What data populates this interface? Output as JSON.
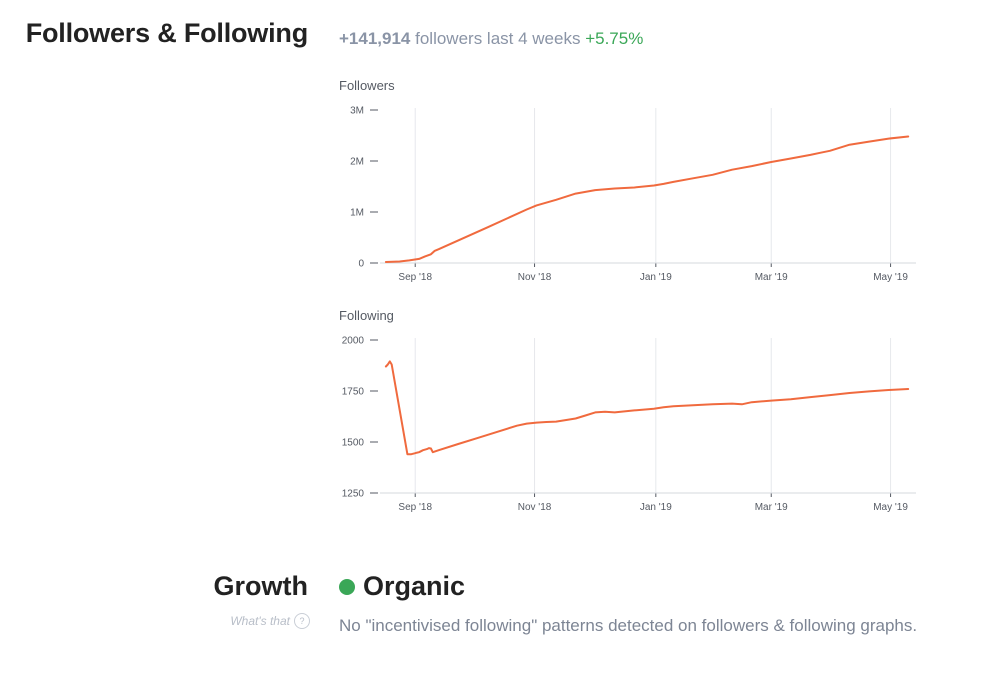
{
  "section": {
    "title": "Followers & Following",
    "summary_delta": "+141,914",
    "summary_text": " followers last 4 weeks ",
    "summary_pct": "+5.75%"
  },
  "colors": {
    "line": "#f06a3e",
    "positive": "#3aa757",
    "grid": "#e6e8ec",
    "axis": "#555a63"
  },
  "chart_data": [
    {
      "type": "line",
      "title": "Followers",
      "xlabel": "",
      "ylabel": "",
      "x_ticks": [
        "Sep '18",
        "Nov '18",
        "Jan '19",
        "Mar '19",
        "May '19"
      ],
      "x_tick_days": [
        18,
        79,
        141,
        200,
        261
      ],
      "y_ticks": [
        "0",
        "1M",
        "2M",
        "3M"
      ],
      "y_tick_values": [
        0,
        1000000,
        2000000,
        3000000
      ],
      "ylim": [
        0,
        3000000
      ],
      "xlim": [
        0,
        274
      ],
      "grid": "vertical",
      "series": [
        {
          "name": "Followers",
          "x": [
            3,
            10,
            15,
            20,
            23,
            26,
            28,
            30,
            55,
            75,
            80,
            90,
            100,
            110,
            120,
            130,
            140,
            145,
            150,
            160,
            170,
            180,
            190,
            200,
            210,
            220,
            225,
            230,
            240,
            250,
            260,
            270
          ],
          "y": [
            20000,
            30000,
            50000,
            80000,
            130000,
            170000,
            240000,
            270000,
            700000,
            1050000,
            1130000,
            1240000,
            1360000,
            1430000,
            1460000,
            1480000,
            1520000,
            1550000,
            1590000,
            1660000,
            1730000,
            1830000,
            1900000,
            1980000,
            2050000,
            2120000,
            2160000,
            2200000,
            2320000,
            2380000,
            2440000,
            2480000
          ]
        }
      ]
    },
    {
      "type": "line",
      "title": "Following",
      "xlabel": "",
      "ylabel": "",
      "x_ticks": [
        "Sep '18",
        "Nov '18",
        "Jan '19",
        "Mar '19",
        "May '19"
      ],
      "x_tick_days": [
        18,
        79,
        141,
        200,
        261
      ],
      "y_ticks": [
        "1250",
        "1500",
        "1750",
        "2000"
      ],
      "y_tick_values": [
        1250,
        1500,
        1750,
        2000
      ],
      "ylim": [
        1250,
        2000
      ],
      "xlim": [
        0,
        274
      ],
      "grid": "vertical",
      "series": [
        {
          "name": "Following",
          "x": [
            3,
            4,
            5,
            6,
            14,
            16,
            18,
            19,
            20,
            22,
            24,
            25,
            26,
            27,
            30,
            40,
            50,
            60,
            70,
            75,
            80,
            85,
            90,
            100,
            105,
            110,
            115,
            120,
            130,
            140,
            145,
            150,
            155,
            160,
            170,
            180,
            185,
            190,
            200,
            210,
            220,
            230,
            240,
            250,
            260,
            270
          ],
          "y": [
            1870,
            1880,
            1895,
            1880,
            1440,
            1440,
            1445,
            1448,
            1450,
            1460,
            1465,
            1470,
            1468,
            1450,
            1460,
            1490,
            1520,
            1550,
            1580,
            1590,
            1595,
            1598,
            1600,
            1615,
            1630,
            1645,
            1648,
            1645,
            1655,
            1663,
            1670,
            1675,
            1678,
            1680,
            1685,
            1688,
            1685,
            1695,
            1703,
            1710,
            1720,
            1730,
            1740,
            1748,
            1755,
            1760
          ]
        }
      ]
    }
  ],
  "growth": {
    "title": "Growth",
    "whats_that": "What's that",
    "help_icon": "?",
    "status": "Organic",
    "description": "No \"incentivised following\" patterns detected on followers & following graphs."
  }
}
